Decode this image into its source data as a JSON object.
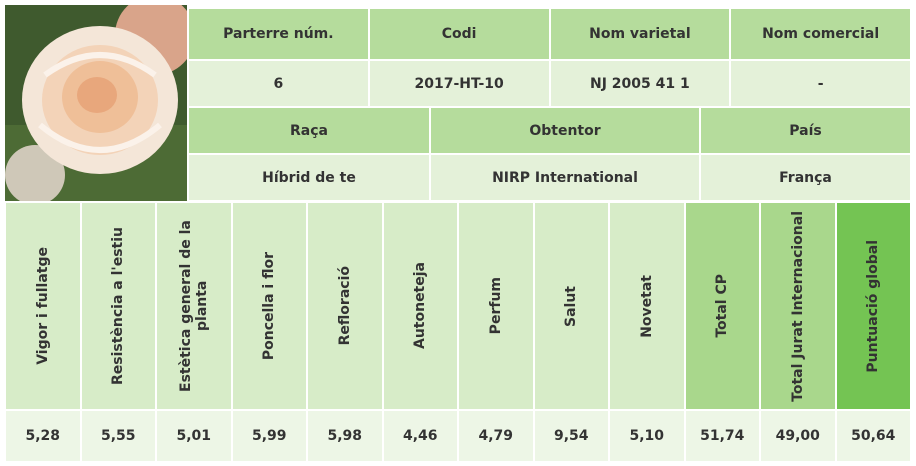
{
  "info_top": {
    "headers": [
      "Parterre núm.",
      "Codi",
      "Nom varietal",
      "Nom comercial"
    ],
    "values": [
      "6",
      "2017-HT-10",
      "NJ 2005 41 1",
      "-"
    ]
  },
  "info_bottom": {
    "headers": [
      "Raça",
      "Obtentor",
      "País"
    ],
    "values": [
      "Híbrid de te",
      "NIRP International",
      "França"
    ]
  },
  "scores": {
    "headers": [
      "Vigor i fullatge",
      "Resistència a l'estiu",
      "Estètica general de la planta",
      "Poncella i flor",
      "Refloració",
      "Autoneteja",
      "Perfum",
      "Salut",
      "Novetat",
      "Total CP",
      "Total Jurat Internacional",
      "Puntuació global"
    ],
    "values": [
      "5,28",
      "5,55",
      "5,01",
      "5,99",
      "5,98",
      "4,46",
      "4,79",
      "9,54",
      "5,10",
      "51,74",
      "49,00",
      "50,64"
    ]
  }
}
